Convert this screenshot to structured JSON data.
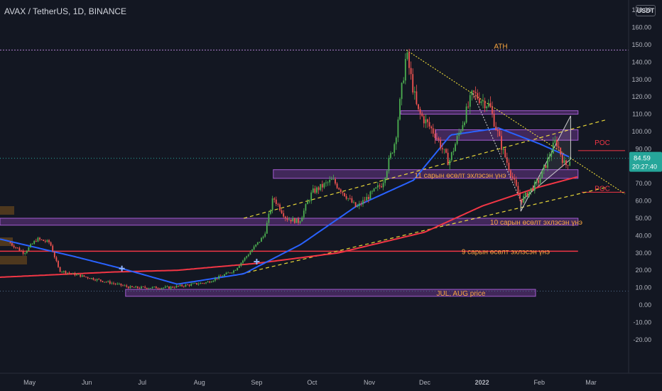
{
  "header": {
    "symbol_title": "AVAX / TetherUS, 1D, BINANCE",
    "currency_button": "USDT"
  },
  "price_axis": {
    "ticks": [
      170,
      160,
      150,
      140,
      130,
      120,
      110,
      100,
      90,
      80,
      70,
      60,
      50,
      40,
      30,
      20,
      10,
      0,
      -10,
      -20
    ],
    "last_price": "84.59",
    "countdown": "20:27:40"
  },
  "time_axis": {
    "labels": [
      "May",
      "Jun",
      "Jul",
      "Aug",
      "Sep",
      "Oct",
      "Nov",
      "Dec",
      "2022",
      "Feb",
      "Mar"
    ]
  },
  "colors": {
    "background": "#131722",
    "up_candle": "#26a69a",
    "green_candle": "#4caf50",
    "down_candle": "#ef5350",
    "ma_blue": "#2962ff",
    "ma_red": "#f23645",
    "zone_purple": "#7b3fa0",
    "annotation_orange": "#f7a440",
    "trend_yellow": "#ffeb3b",
    "last_price_box": "#26a69a"
  },
  "chart_data": {
    "type": "candlestick",
    "ylim": [
      -25,
      178
    ],
    "annotations": {
      "ath": "ATH",
      "poc_upper": "POC",
      "poc_lower": "POC",
      "zone_11": "11 сарын өсөлт эхлэсэн үнэ",
      "zone_10": "10 сарын өсөлт эхлэсэн үнэ",
      "line_9": "9 сарын өсөлт эхлэсэн үнэ",
      "zone_jul_aug": "JUL, AUG price"
    },
    "levels": {
      "ath": 147,
      "current_price": 84.59,
      "poc_upper": 89,
      "poc_lower": 65,
      "line_9": 31
    },
    "zones": [
      {
        "id": "zone_11",
        "from": 73,
        "to": 78
      },
      {
        "id": "zone_10",
        "from": 46,
        "to": 50
      },
      {
        "id": "zone_jul_aug",
        "from": 5,
        "to": 9
      },
      {
        "id": "resistance",
        "from": 95,
        "to": 101
      },
      {
        "id": "top_box",
        "from": 110,
        "to": 112
      }
    ],
    "price_path": [
      {
        "date": "2021-04-20",
        "price": 36
      },
      {
        "date": "2021-04-28",
        "price": 30
      },
      {
        "date": "2021-05-05",
        "price": 38
      },
      {
        "date": "2021-05-12",
        "price": 36
      },
      {
        "date": "2021-05-17",
        "price": 20
      },
      {
        "date": "2021-05-24",
        "price": 18
      },
      {
        "date": "2021-06-05",
        "price": 15
      },
      {
        "date": "2021-06-25",
        "price": 10
      },
      {
        "date": "2021-07-15",
        "price": 10
      },
      {
        "date": "2021-08-05",
        "price": 13
      },
      {
        "date": "2021-08-20",
        "price": 20
      },
      {
        "date": "2021-09-05",
        "price": 40
      },
      {
        "date": "2021-09-10",
        "price": 62
      },
      {
        "date": "2021-09-17",
        "price": 50
      },
      {
        "date": "2021-09-24",
        "price": 48
      },
      {
        "date": "2021-10-01",
        "price": 65
      },
      {
        "date": "2021-10-12",
        "price": 72
      },
      {
        "date": "2021-10-25",
        "price": 56
      },
      {
        "date": "2021-11-08",
        "price": 70
      },
      {
        "date": "2021-11-15",
        "price": 95
      },
      {
        "date": "2021-11-21",
        "price": 145
      },
      {
        "date": "2021-11-27",
        "price": 112
      },
      {
        "date": "2021-12-07",
        "price": 98
      },
      {
        "date": "2021-12-14",
        "price": 82
      },
      {
        "date": "2021-12-27",
        "price": 122
      },
      {
        "date": "2022-01-05",
        "price": 115
      },
      {
        "date": "2022-01-12",
        "price": 90
      },
      {
        "date": "2022-01-22",
        "price": 60
      },
      {
        "date": "2022-02-01",
        "price": 72
      },
      {
        "date": "2022-02-10",
        "price": 95
      },
      {
        "date": "2022-02-15",
        "price": 80
      },
      {
        "date": "2022-02-18",
        "price": 84.59
      }
    ],
    "ma_blue": [
      {
        "date": "2021-04-15",
        "price": 38
      },
      {
        "date": "2021-05-25",
        "price": 28
      },
      {
        "date": "2021-06-20",
        "price": 21
      },
      {
        "date": "2021-07-20",
        "price": 12
      },
      {
        "date": "2021-08-25",
        "price": 18
      },
      {
        "date": "2021-09-25",
        "price": 35
      },
      {
        "date": "2021-10-25",
        "price": 57
      },
      {
        "date": "2021-11-25",
        "price": 72
      },
      {
        "date": "2021-12-15",
        "price": 98
      },
      {
        "date": "2022-01-10",
        "price": 102
      },
      {
        "date": "2022-02-01",
        "price": 93
      },
      {
        "date": "2022-02-18",
        "price": 85
      }
    ],
    "ma_red": [
      {
        "date": "2021-04-15",
        "price": 16
      },
      {
        "date": "2021-06-15",
        "price": 19
      },
      {
        "date": "2021-07-20",
        "price": 20
      },
      {
        "date": "2021-09-01",
        "price": 24
      },
      {
        "date": "2021-10-15",
        "price": 30
      },
      {
        "date": "2021-12-01",
        "price": 42
      },
      {
        "date": "2022-01-01",
        "price": 57
      },
      {
        "date": "2022-02-01",
        "price": 68
      },
      {
        "date": "2022-02-22",
        "price": 74
      }
    ]
  }
}
